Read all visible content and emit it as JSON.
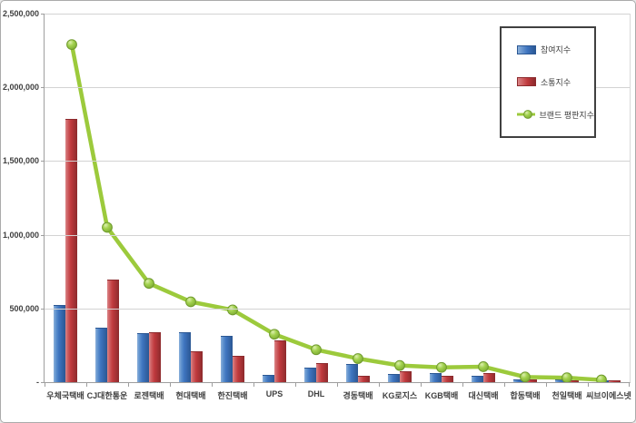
{
  "chart_data": {
    "type": "bar",
    "title": "",
    "xlabel": "",
    "ylabel": "",
    "categories": [
      "우체국택배",
      "CJ대한통운",
      "로젠택배",
      "현대택배",
      "한진택배",
      "UPS",
      "DHL",
      "경동택배",
      "KG로지스",
      "KGB택배",
      "대신택배",
      "합동택배",
      "천일택배",
      "씨브이에스넷"
    ],
    "series": [
      {
        "name": "참여지수",
        "type": "bar",
        "color": "#3E74BF",
        "values": [
          520000,
          365000,
          325000,
          335000,
          310000,
          45000,
          95000,
          120000,
          50000,
          55000,
          40000,
          15000,
          12000,
          5000
        ]
      },
      {
        "name": "소통지수",
        "type": "bar",
        "color": "#C03A3D",
        "values": [
          1780000,
          690000,
          330000,
          205000,
          175000,
          280000,
          125000,
          40000,
          70000,
          40000,
          55000,
          10000,
          8000,
          3000
        ]
      },
      {
        "name": "브랜드 평판지수",
        "type": "line",
        "color": "#9CCA3C",
        "values": [
          2290000,
          1050000,
          670000,
          545000,
          490000,
          325000,
          220000,
          160000,
          113000,
          100000,
          105000,
          35000,
          30000,
          15000
        ]
      }
    ],
    "ylim": [
      0,
      2500000
    ],
    "ytick_interval": 500000,
    "ytick_labels_top_to_bottom": [
      "2,500,000",
      "2,000,000",
      "1,500,000",
      "1,000,000",
      "500,000",
      "-"
    ],
    "grid": true,
    "legend_position": "top-right"
  },
  "legend": {
    "items": [
      {
        "label": "참여지수",
        "swatch": "bar-blue"
      },
      {
        "label": "소통지수",
        "swatch": "bar-red"
      },
      {
        "label": "브랜드 평판지수",
        "swatch": "line-green-marker"
      }
    ]
  },
  "colors": {
    "bar_blue": "#3E74BF",
    "bar_red": "#C03A3D",
    "line_green": "#9CCA3C",
    "marker_green": "#8DC63F",
    "marker_stroke": "#6F9A2D",
    "gridline": "#D3D3D3",
    "axis": "#9E9E9E",
    "text": "#3F3F3F",
    "legend_border": "#404040",
    "background": "#FFFFFF"
  }
}
